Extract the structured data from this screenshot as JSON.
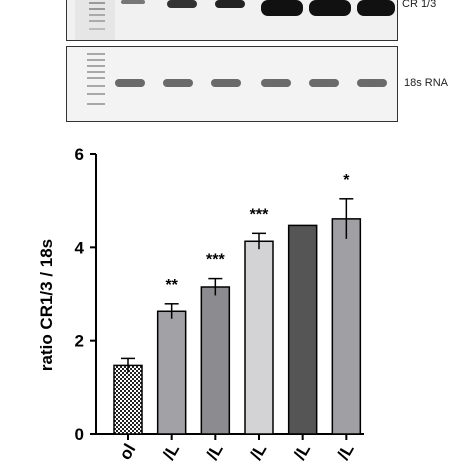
{
  "gel": {
    "band_label_top": "CR 1/3",
    "band_label_bottom": "18s RNA"
  },
  "chart_data": {
    "type": "bar",
    "ylabel": "ratio CR1/3 / 18s",
    "ylim": [
      0,
      6
    ],
    "yticks": [
      "0",
      "2",
      "4",
      "6"
    ],
    "categories": [
      "ol",
      "/L",
      "/L",
      "/L",
      "/L",
      "/L"
    ],
    "values": [
      1.47,
      2.63,
      3.15,
      4.13,
      4.47,
      4.61
    ],
    "errors": [
      0.15,
      0.16,
      0.18,
      0.17,
      0.0,
      0.43
    ],
    "significance": [
      "",
      "**",
      "***",
      "***",
      "",
      "*"
    ],
    "bar_fills": [
      "checker",
      "#a2a2a6",
      "#8c8c90",
      "#d3d3d5",
      "#555555",
      "#a0a0a4"
    ],
    "grid": false
  }
}
